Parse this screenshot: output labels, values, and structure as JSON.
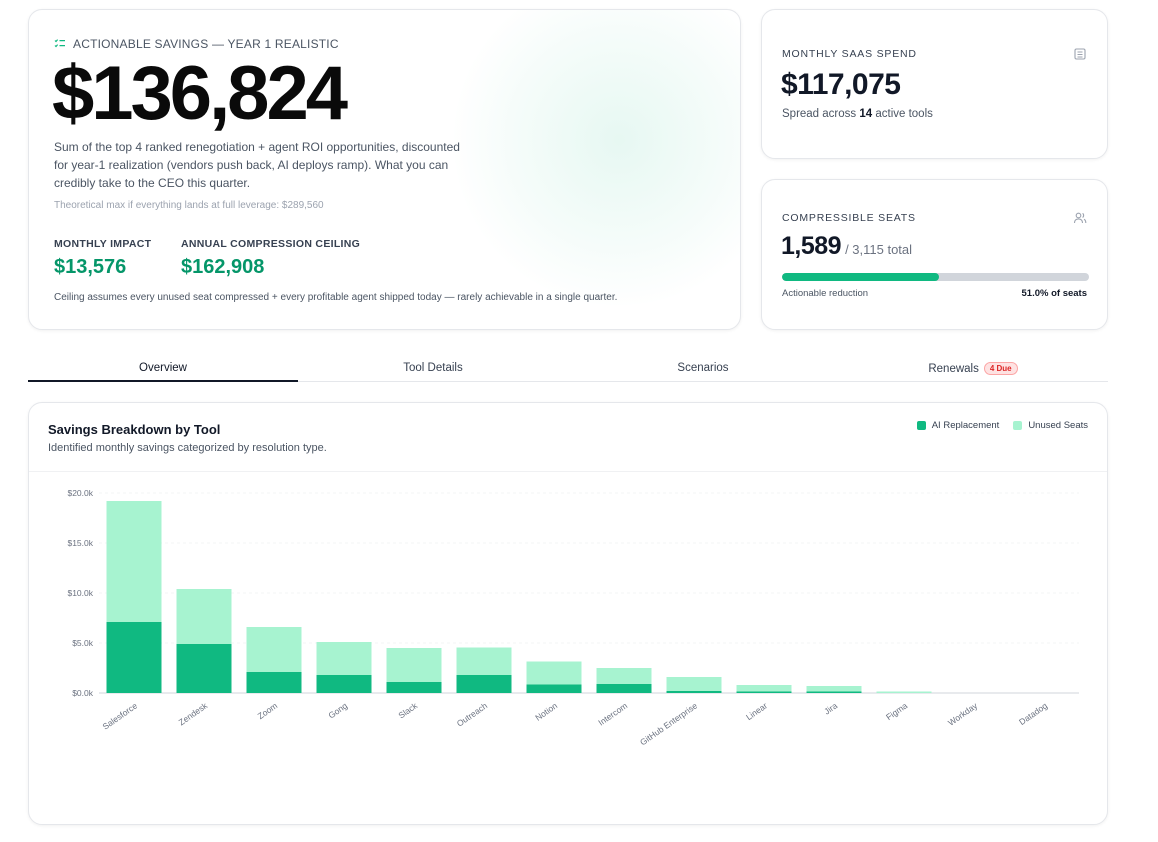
{
  "hero": {
    "eyebrow": "ACTIONABLE SAVINGS — YEAR 1 REALISTIC",
    "value": "$136,824",
    "description": "Sum of the top 4 ranked renegotiation + agent ROI opportunities, discounted for year-1 realization (vendors push back, AI deploys ramp). What you can credibly take to the CEO this quarter.",
    "note": "Theoretical max if everything lands at full leverage: $289,560",
    "monthly_impact_label": "MONTHLY IMPACT",
    "monthly_impact_value": "$13,576",
    "annual_ceiling_label": "ANNUAL COMPRESSION CEILING",
    "annual_ceiling_value": "$162,908",
    "footnote": "Ceiling assumes every unused seat compressed + every profitable agent shipped today — rarely achievable in a single quarter."
  },
  "spend": {
    "label": "MONTHLY SAAS SPEND",
    "value": "$117,075",
    "sub_prefix": "Spread across",
    "tool_count": "14",
    "sub_suffix": "active tools"
  },
  "seats": {
    "label": "COMPRESSIBLE SEATS",
    "value": "1,589",
    "total": "/ 3,115 total",
    "fill_fraction": 0.51,
    "bar_left": "Actionable reduction",
    "bar_right": "51.0% of seats"
  },
  "tabs": [
    {
      "label": "Overview",
      "active": true
    },
    {
      "label": "Tool Details"
    },
    {
      "label": "Scenarios"
    },
    {
      "label": "Renewals",
      "badge": "4 Due"
    }
  ],
  "chart_card": {
    "title": "Savings Breakdown by Tool",
    "subtitle": "Identified monthly savings categorized by resolution type."
  },
  "colors": {
    "ai": "#10b981",
    "unused": "#a7f3d0",
    "accent_text": "#059669"
  },
  "chart_data": {
    "type": "bar",
    "stacked": true,
    "categories": [
      "Salesforce",
      "Zendesk",
      "Zoom",
      "Gong",
      "Slack",
      "Outreach",
      "Notion",
      "Intercom",
      "GitHub Enterprise",
      "Linear",
      "Jira",
      "Figma",
      "Workday",
      "Datadog"
    ],
    "series": [
      {
        "name": "AI Replacement",
        "values": [
          7100,
          4900,
          2100,
          1800,
          1100,
          1800,
          850,
          900,
          200,
          150,
          150,
          0,
          0,
          0
        ]
      },
      {
        "name": "Unused Seats",
        "values": [
          12100,
          5500,
          4500,
          3300,
          3400,
          2750,
          2300,
          1600,
          1400,
          650,
          550,
          150,
          0,
          0
        ]
      }
    ],
    "yticks": [
      "$0.0k",
      "$5.0k",
      "$10.0k",
      "$15.0k",
      "$20.0k"
    ],
    "ylim": [
      0,
      20000
    ],
    "grid": true,
    "legend": "top-right"
  }
}
